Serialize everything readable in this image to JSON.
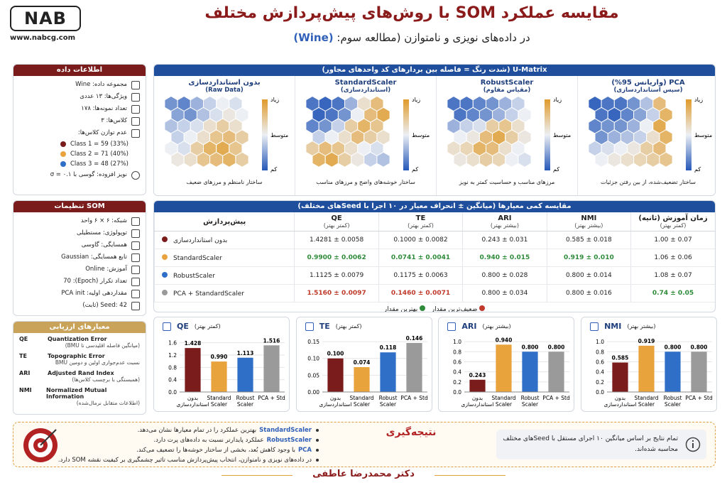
{
  "header": {
    "logo": "NAB",
    "website": "www.nabcg.com",
    "title": "مقایسه عملکرد SOM با روش‌های پیش‌پردازش مختلف",
    "subtitle": "در داده‌های نویزی و نامتوازن (مطالعه سوم:",
    "subtitle_highlight": "(Wine)"
  },
  "data_info": {
    "title": "اطلاعات داده",
    "items": [
      "مجموعه داده: Wine",
      "ویژگی‌ها: ۱۳ عددی",
      "تعداد نمونه‌ها: ۱۷۸",
      "کلاس‌ها: ۳",
      "عدم توازن کلاس‌ها:"
    ],
    "classes": [
      {
        "text": "Class 1 = 59 (33%)",
        "color": "#7b1c1c"
      },
      {
        "text": "Class 2 = 71 (40%)",
        "color": "#e8a33d"
      },
      {
        "text": "Class 3 = 48 (27%)",
        "color": "#2f6fc7"
      }
    ],
    "noise": "نویز افزوده: گوسی با σ = ۰.۱"
  },
  "som_settings": {
    "title": "تنظیمات SOM",
    "items": [
      "شبکه: ۶ × ۶ واحد",
      "توپولوژی: مستطیلی",
      "همسایگی: گاوسی",
      "تابع همسایگی: Gaussian",
      "آموزش: Online",
      "تعداد تکرار (Epoch): 70",
      "مقداردهی اولیه: PCA init",
      "Seed: 42 (ثابت)"
    ]
  },
  "metrics": {
    "title": "معیارهای ارزیابی",
    "items": [
      {
        "abbr": "QE",
        "name": "Quantization Error",
        "desc": "(میانگین فاصله اقلیدسی تا BMU)"
      },
      {
        "abbr": "TE",
        "name": "Topographic Error",
        "desc": "نسبت عدم‌جواری اولین و دومین BMU"
      },
      {
        "abbr": "ARI",
        "name": "Adjusted Rand Index",
        "desc": "(همبستگی با برچسب کلاس‌ها)"
      },
      {
        "abbr": "NMI",
        "name": "Normalized Mutual Information",
        "desc": "(اطلاعات متقابل نرمال‌شده)"
      }
    ]
  },
  "umatrix": {
    "title": "U-Matrix (شدت رنگ = فاصله بین بردارهای کد واحدهای مجاور)",
    "colorbar_labels": [
      "زیاد",
      "متوسط",
      "کم"
    ],
    "clim": [
      0,
      1
    ],
    "maps": [
      {
        "title": "بدون استانداردسازی",
        "subtitle": "(Raw Data)",
        "caption": "ساختار نامنظم و مرزهای ضعیف",
        "grid": [
          [
            0.2,
            0.15,
            0.3,
            0.4,
            0.5,
            0.45
          ],
          [
            0.25,
            0.2,
            0.35,
            0.45,
            0.55,
            0.5
          ],
          [
            0.35,
            0.4,
            0.45,
            0.6,
            0.7,
            0.6
          ],
          [
            0.4,
            0.5,
            0.6,
            0.75,
            0.8,
            0.7
          ],
          [
            0.5,
            0.45,
            0.7,
            0.85,
            0.9,
            0.75
          ],
          [
            0.55,
            0.6,
            0.75,
            0.8,
            0.85,
            0.7
          ]
        ]
      },
      {
        "title": "StandardScaler",
        "subtitle": "(استانداردسازی)",
        "caption": "ساختار خوشه‌های واضح و مرزهای مناسب",
        "grid": [
          [
            0.1,
            0.05,
            0.1,
            0.3,
            0.6,
            0.8
          ],
          [
            0.05,
            0.1,
            0.2,
            0.5,
            0.8,
            0.9
          ],
          [
            0.15,
            0.2,
            0.4,
            0.7,
            0.85,
            0.75
          ],
          [
            0.4,
            0.5,
            0.6,
            0.8,
            0.7,
            0.6
          ],
          [
            0.7,
            0.8,
            0.75,
            0.6,
            0.5,
            0.45
          ],
          [
            0.85,
            0.9,
            0.7,
            0.55,
            0.4,
            0.35
          ]
        ]
      },
      {
        "title": "RobustScaler",
        "subtitle": "(مقیاس مقاوم)",
        "caption": "مرزهای مناسب و حساسیت کمتر به نویز",
        "grid": [
          [
            0.1,
            0.1,
            0.15,
            0.2,
            0.3,
            0.4
          ],
          [
            0.1,
            0.15,
            0.2,
            0.3,
            0.4,
            0.5
          ],
          [
            0.3,
            0.4,
            0.45,
            0.7,
            0.75,
            0.6
          ],
          [
            0.5,
            0.55,
            0.8,
            0.9,
            0.7,
            0.55
          ],
          [
            0.6,
            0.65,
            0.85,
            0.8,
            0.6,
            0.5
          ],
          [
            0.55,
            0.6,
            0.7,
            0.65,
            0.5,
            0.45
          ]
        ]
      },
      {
        "title": "PCA (واریانس 95%)",
        "subtitle": "(سپس استانداردسازی)",
        "caption": "ساختار تضعیف‌شده، از بین رفتن جزئیات",
        "grid": [
          [
            0.05,
            0.1,
            0.1,
            0.2,
            0.35,
            0.8
          ],
          [
            0.1,
            0.05,
            0.15,
            0.25,
            0.4,
            0.85
          ],
          [
            0.15,
            0.2,
            0.2,
            0.3,
            0.5,
            0.9
          ],
          [
            0.2,
            0.3,
            0.35,
            0.4,
            0.6,
            0.85
          ],
          [
            0.4,
            0.45,
            0.5,
            0.55,
            0.7,
            0.8
          ],
          [
            0.5,
            0.55,
            0.6,
            0.65,
            0.7,
            0.75
          ]
        ]
      }
    ]
  },
  "table": {
    "title": "مقایسه کمی معیارها (میانگین ± انحراف معیار در ۱۰ اجرا با Seedهای مختلف)",
    "columns": [
      {
        "title": "پیش‌پردازش"
      },
      {
        "title": "QE",
        "note": "(کمتر بهتر)"
      },
      {
        "title": "TE",
        "note": "(کمتر بهتر)"
      },
      {
        "title": "ARI",
        "note": "(بیشتر بهتر)"
      },
      {
        "title": "NMI",
        "note": "(بیشتر بهتر)"
      },
      {
        "title": "زمان آموزش (ثانیه)",
        "note": "(کمتر بهتر)"
      }
    ],
    "rows": [
      {
        "name": "بدون استانداردسازی",
        "color": "#7b1c1c",
        "cells": [
          "1.4281 ± 0.0058",
          "0.1000 ± 0.0082",
          "0.243 ± 0.031",
          "0.585 ± 0.018",
          "1.00 ± 0.07"
        ]
      },
      {
        "name": "StandardScaler",
        "color": "#e8a33d",
        "cells": [
          "0.9900 ± 0.0062",
          "0.0741 ± 0.0041",
          "0.940 ± 0.015",
          "0.919 ± 0.010",
          "1.06 ± 0.06"
        ]
      },
      {
        "name": "RobustScaler",
        "color": "#2f6fc7",
        "cells": [
          "1.1125 ± 0.0079",
          "0.1175 ± 0.0063",
          "0.800 ± 0.028",
          "0.800 ± 0.014",
          "1.08 ± 0.07"
        ]
      },
      {
        "name": "PCA + StandardScaler",
        "color": "#9a9a9a",
        "cells": [
          "1.5160 ± 0.0097",
          "0.1460 ± 0.0071",
          "0.800 ± 0.034",
          "0.800 ± 0.016",
          "0.74 ± 0.05"
        ]
      }
    ],
    "best_cells": [
      [
        1,
        0
      ],
      [
        1,
        1
      ],
      [
        1,
        2
      ],
      [
        1,
        3
      ],
      [
        3,
        4
      ]
    ],
    "worst_cells": [
      [
        3,
        0
      ],
      [
        3,
        1
      ]
    ],
    "legend": {
      "best": "بهترین مقدار",
      "worst": "ضعیف‌ترین مقدار",
      "best_color": "#2e8b3a",
      "worst_color": "#c0392b"
    }
  },
  "chart_data": [
    {
      "type": "bar",
      "title": "QE",
      "subtitle": "(کمتر بهتر)",
      "categories": [
        "بدون\nاستانداردسازی",
        "Standard\nScaler",
        "Robust\nScaler",
        "PCA + Std"
      ],
      "values": [
        1.428,
        0.99,
        1.113,
        1.516
      ],
      "value_labels": [
        "1.428",
        "0.990",
        "1.113",
        "1.516"
      ],
      "colors": [
        "#7b1c1c",
        "#e8a33d",
        "#2f6fc7",
        "#9a9a9a"
      ],
      "ylim": [
        0,
        1.8
      ],
      "yticks": [
        {
          "value": 0,
          "label": "0.0"
        },
        0.4,
        0.8,
        1.2,
        1.6
      ],
      "grid": true
    },
    {
      "type": "bar",
      "title": "TE",
      "subtitle": "(کمتر بهتر)",
      "categories": [
        "بدون\nاستانداردسازی",
        "Standard\nScaler",
        "Robust\nScaler",
        "PCA + Std"
      ],
      "values": [
        0.1,
        0.074,
        0.118,
        0.146
      ],
      "value_labels": [
        "0.100",
        "0.074",
        "0.118",
        "0.146"
      ],
      "colors": [
        "#7b1c1c",
        "#e8a33d",
        "#2f6fc7",
        "#9a9a9a"
      ],
      "ylim": [
        0,
        0.165
      ],
      "yticks": [
        {
          "value": 0,
          "label": "0.00"
        },
        0.05,
        {
          "value": 0.1,
          "label": "0.10"
        },
        0.15
      ],
      "grid": true
    },
    {
      "type": "bar",
      "title": "ARI",
      "subtitle": "(بیشتر بهتر)",
      "categories": [
        "بدون\nاستانداردسازی",
        "Standard\nScaler",
        "Robust\nScaler",
        "PCA + Std"
      ],
      "values": [
        0.243,
        0.94,
        0.8,
        0.8
      ],
      "value_labels": [
        "0.243",
        "0.940",
        "0.800",
        "0.800"
      ],
      "colors": [
        "#7b1c1c",
        "#e8a33d",
        "#2f6fc7",
        "#9a9a9a"
      ],
      "ylim": [
        0,
        1.1
      ],
      "yticks": [
        {
          "value": 0,
          "label": "0.0"
        },
        0.2,
        0.4,
        0.6,
        0.8,
        {
          "value": 1,
          "label": "1.0"
        }
      ],
      "grid": true
    },
    {
      "type": "bar",
      "title": "NMI",
      "subtitle": "(بیشتر بهتر)",
      "categories": [
        "بدون\nاستانداردسازی",
        "Standard\nScaler",
        "Robust\nScaler",
        "PCA + Std"
      ],
      "values": [
        0.585,
        0.919,
        0.8,
        0.8
      ],
      "value_labels": [
        "0.585",
        "0.919",
        "0.800",
        "0.800"
      ],
      "colors": [
        "#7b1c1c",
        "#e8a33d",
        "#2f6fc7",
        "#9a9a9a"
      ],
      "ylim": [
        0,
        1.1
      ],
      "yticks": [
        {
          "value": 0,
          "label": "0.0"
        },
        0.2,
        0.4,
        0.6,
        0.8,
        {
          "value": 1,
          "label": "1.0"
        }
      ],
      "grid": true
    }
  ],
  "conclusion": {
    "title": "نتیجه‌گیری",
    "bullets": [
      {
        "lead": "StandardScaler",
        "text": "بهترین عملکرد را در تمام معیارها نشان می‌دهد."
      },
      {
        "lead": "RobustScaler",
        "text": "عملکرد پایدارتر نسبت به داده‌های پرت دارد."
      },
      {
        "lead": "PCA",
        "text": "با وجود کاهش بُعد، بخشی از ساختار خوشه‌ها را تضعیف می‌کند."
      },
      {
        "text": "در داده‌های نویزی و نامتوازن، انتخاب پیش‌پردازش مناسب تاثیر چشمگیری بر کیفیت نقشه SOM دارد."
      }
    ],
    "note": "تمام نتایج بر اساس میانگین ۱۰ اجرای مستقل با Seedهای مختلف محاسبه شده‌اند."
  },
  "footer": {
    "author": "دکتر محمدرضا عاطفی"
  }
}
